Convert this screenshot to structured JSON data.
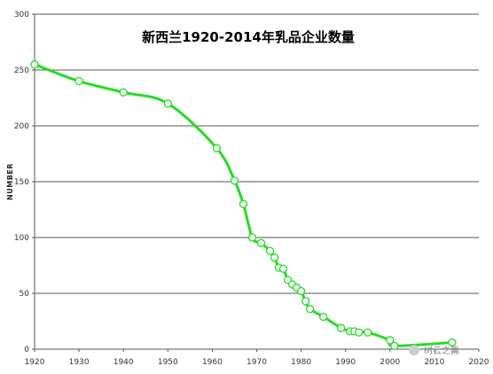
{
  "chart_data": {
    "type": "line",
    "title": "新西兰1920-2014年乳品企业数量",
    "xlabel": "",
    "ylabel": "NUMBER",
    "xlim": [
      1920,
      2020
    ],
    "ylim": [
      0,
      300
    ],
    "x_ticks": [
      "1920",
      "1930",
      "1940",
      "1950",
      "1960",
      "1970",
      "1980",
      "1990",
      "2000",
      "2010",
      "2020"
    ],
    "y_ticks": [
      "0",
      "50",
      "100",
      "150",
      "200",
      "250",
      "300"
    ],
    "grid": "horizontal",
    "legend": "none",
    "series": [
      {
        "color": "#22dd22",
        "marker_color": "#ffffff",
        "points": [
          [
            1920,
            255
          ],
          [
            1930,
            240
          ],
          [
            1940,
            230
          ],
          [
            1950,
            220
          ],
          [
            1961,
            180
          ],
          [
            1965,
            151
          ],
          [
            1967,
            130
          ],
          [
            1969,
            100
          ],
          [
            1971,
            95
          ],
          [
            1973,
            88
          ],
          [
            1974,
            82
          ],
          [
            1975,
            73
          ],
          [
            1976,
            72
          ],
          [
            1977,
            62
          ],
          [
            1978,
            58
          ],
          [
            1979,
            55
          ],
          [
            1980,
            52
          ],
          [
            1981,
            43
          ],
          [
            1982,
            36
          ],
          [
            1985,
            29
          ],
          [
            1989,
            19
          ],
          [
            1991,
            16
          ],
          [
            1992,
            16
          ],
          [
            1993,
            15
          ],
          [
            1995,
            15
          ],
          [
            2000,
            8
          ],
          [
            2001,
            3
          ],
          [
            2014,
            6
          ]
        ]
      }
    ]
  },
  "watermark": "树云之篇"
}
